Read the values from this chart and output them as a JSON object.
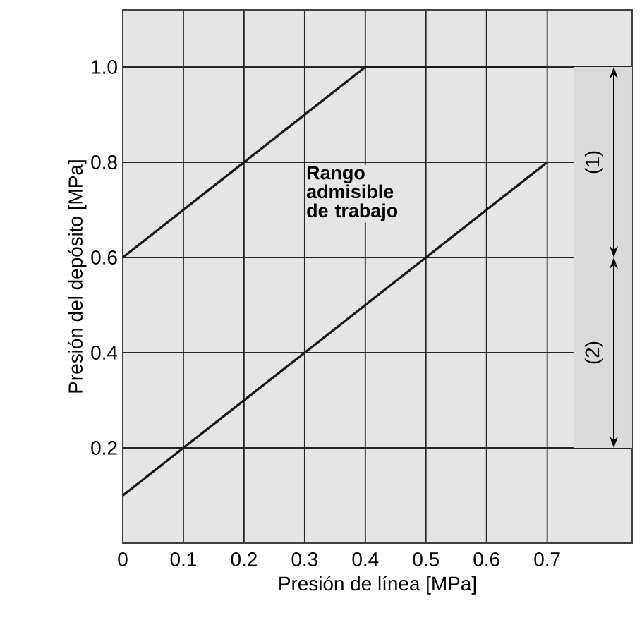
{
  "chart_data": {
    "type": "line",
    "xlabel": "Presión de línea [MPa]",
    "ylabel": "Presión del depósito [MPa]",
    "series": [
      {
        "color": "#1a1a1a",
        "x": [
          0,
          0.4,
          0.7
        ],
        "values": [
          0.6,
          1.0,
          1.0
        ]
      },
      {
        "color": "#1a1a1a",
        "x": [
          0,
          0.7
        ],
        "values": [
          0.1,
          0.8
        ]
      }
    ],
    "xlim": [
      0,
      0.84
    ],
    "ylim": [
      0,
      1.12
    ],
    "xticks": [
      0,
      0.1,
      0.2,
      0.3,
      0.4,
      0.5,
      0.6,
      0.7
    ],
    "yticks": [
      0.2,
      0.4,
      0.6,
      0.8,
      {
        "value": 1.0,
        "label": "1.0"
      }
    ],
    "grid": true,
    "annotations": [
      "Rango admisible de trabajo"
    ],
    "bands": [
      {
        "axis": "y",
        "from": 0.6,
        "to": 1.0,
        "label": "(1)",
        "color": "#dadada"
      },
      {
        "axis": "y",
        "from": 0.2,
        "to": 0.6,
        "label": "(2)",
        "color": "#dadada"
      }
    ]
  }
}
